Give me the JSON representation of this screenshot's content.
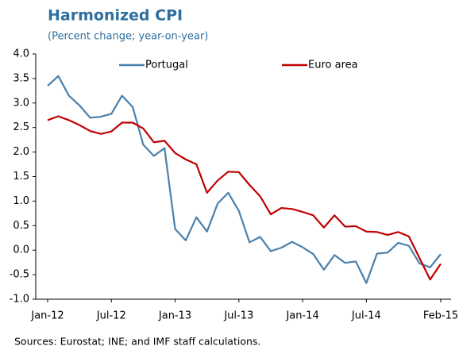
{
  "chart_data": {
    "type": "line",
    "title": "Harmonized CPI",
    "subtitle": "(Percent change; year-on-year)",
    "source": "Sources: Eurostat; INE; and IMF staff calculations.",
    "categories": [
      "Jan-12",
      null,
      null,
      null,
      null,
      null,
      "Jul-12",
      null,
      null,
      null,
      null,
      null,
      "Jan-13",
      null,
      null,
      null,
      null,
      null,
      "Jul-13",
      null,
      null,
      null,
      null,
      null,
      "Jan-14",
      null,
      null,
      null,
      null,
      null,
      "Jul-14",
      null,
      null,
      null,
      null,
      null,
      null,
      "Feb-15"
    ],
    "series": [
      {
        "name": "Portugal",
        "color": "#4a80ac",
        "values": [
          3.35,
          3.55,
          3.15,
          2.95,
          2.7,
          2.72,
          2.78,
          3.15,
          2.92,
          2.15,
          1.92,
          2.08,
          0.43,
          0.2,
          0.67,
          0.38,
          0.95,
          1.17,
          0.8,
          0.16,
          0.27,
          -0.02,
          0.05,
          0.17,
          0.06,
          -0.08,
          -0.4,
          -0.1,
          -0.26,
          -0.23,
          -0.67,
          -0.07,
          -0.05,
          0.15,
          0.09,
          -0.27,
          -0.35,
          -0.08
        ]
      },
      {
        "name": "Euro area",
        "color": "#c00000",
        "values": [
          2.65,
          2.73,
          2.65,
          2.55,
          2.43,
          2.37,
          2.42,
          2.6,
          2.6,
          2.48,
          2.2,
          2.23,
          1.98,
          1.85,
          1.75,
          1.17,
          1.42,
          1.6,
          1.59,
          1.33,
          1.1,
          0.73,
          0.86,
          0.84,
          0.78,
          0.71,
          0.46,
          0.71,
          0.48,
          0.49,
          0.38,
          0.37,
          0.31,
          0.37,
          0.28,
          -0.16,
          -0.6,
          -0.28
        ]
      }
    ],
    "ylim": [
      -1,
      4
    ],
    "yticks": [
      {
        "value": -1,
        "label": "-1.0"
      },
      -0.5,
      {
        "value": 0,
        "label": "0.0"
      },
      0.5,
      {
        "value": 1,
        "label": "1.0"
      },
      1.5,
      {
        "value": 2,
        "label": "2.0"
      },
      2.5,
      {
        "value": 3,
        "label": "3.0"
      },
      3.5,
      {
        "value": 4,
        "label": "4.0"
      }
    ],
    "grid": false,
    "legend": "top"
  }
}
